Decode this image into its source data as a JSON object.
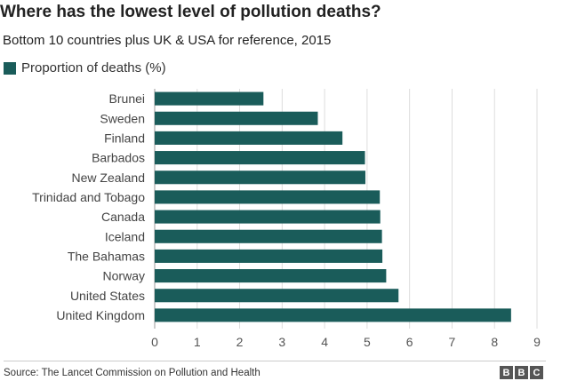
{
  "chart_data": {
    "type": "bar",
    "orientation": "horizontal",
    "title": "Where has the lowest level of pollution deaths?",
    "subtitle": "Bottom 10 countries plus UK & USA for reference, 2015",
    "categories": [
      "Brunei",
      "Sweden",
      "Finland",
      "Barbados",
      "New Zealand",
      "Trinidad and Tobago",
      "Canada",
      "Iceland",
      "The Bahamas",
      "Norway",
      "United States",
      "United Kingdom"
    ],
    "series": [
      {
        "name": "Proportion of deaths (%)",
        "values": [
          2.56,
          3.84,
          4.42,
          4.95,
          4.96,
          5.3,
          5.31,
          5.35,
          5.36,
          5.45,
          5.74,
          8.39
        ]
      }
    ],
    "xlim": [
      0,
      9
    ],
    "xticks": [
      "0",
      "1",
      "2",
      "3",
      "4",
      "5",
      "6",
      "7",
      "8",
      "9"
    ],
    "grid": true,
    "legend": "top-left",
    "colors": {
      "bar": "#1a5c5a",
      "grid": "#dddddd"
    }
  },
  "footer": {
    "source": "Source: The Lancet Commission on Pollution and Health",
    "logo": [
      "B",
      "B",
      "C"
    ]
  }
}
